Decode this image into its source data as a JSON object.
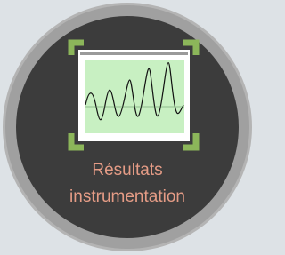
{
  "button": {
    "label_lines": [
      "Résultats",
      "instrumentation"
    ]
  }
}
